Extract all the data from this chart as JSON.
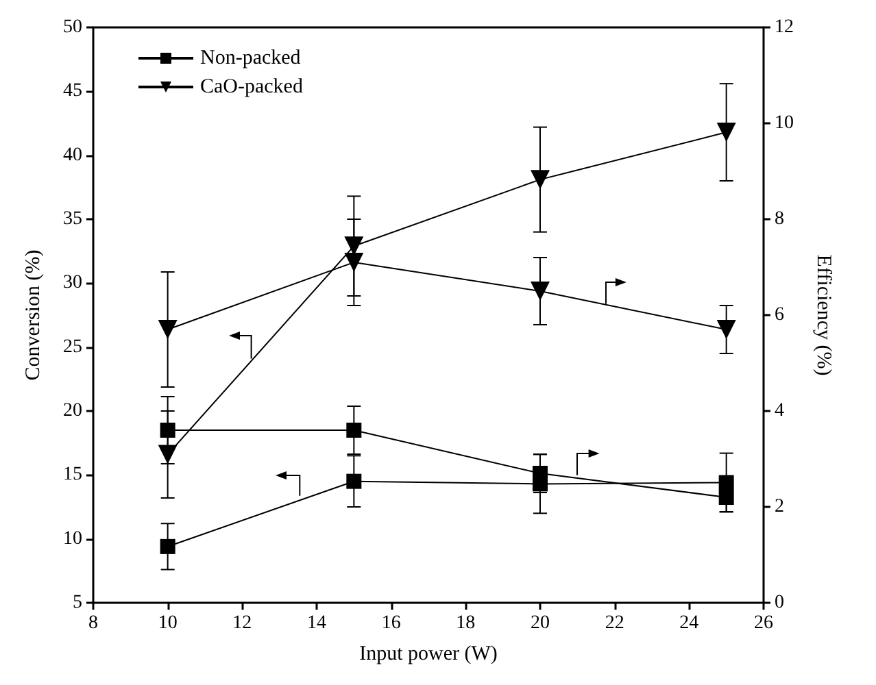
{
  "chart_data": {
    "type": "line",
    "xlabel": "Input power (W)",
    "ylabel": "Conversion (%)",
    "y2label": "Efficiency (%)",
    "x": [
      10,
      15,
      20,
      25
    ],
    "series": [
      {
        "name": "Non-packed",
        "color": "#000000",
        "marker": "square",
        "values": [
          9.4,
          14.5,
          14.3,
          14.4
        ],
        "errors": [
          1.8,
          2,
          2.3,
          2.3
        ]
      },
      {
        "name": "CaO-packed",
        "color": "#000000",
        "marker": "triangle",
        "values": [
          16.6,
          32.9,
          38.1,
          41.8
        ],
        "errors": [
          3.4,
          3.9,
          4.1,
          3.8
        ]
      },
      {
        "color": "#000000",
        "marker": "square",
        "axis": "y2",
        "values": [
          3.6,
          3.6,
          2.7,
          2.2
        ],
        "errors": [
          0.7,
          0.5,
          0.4,
          0.3
        ]
      },
      {
        "color": "#000000",
        "marker": "triangle",
        "axis": "y2",
        "values": [
          5.7,
          7.1,
          6.5,
          5.7
        ],
        "errors": [
          1.2,
          0.9,
          0.7,
          0.5
        ]
      }
    ],
    "xlim": [
      8,
      26
    ],
    "xticks": [
      8,
      10,
      12,
      14,
      16,
      18,
      20,
      22,
      24,
      26
    ],
    "ylim": [
      5,
      50
    ],
    "yticks": [
      5,
      10,
      15,
      20,
      25,
      30,
      35,
      40,
      45,
      50
    ],
    "y2lim": [
      0,
      12
    ],
    "y2ticks": [
      0,
      2,
      4,
      6,
      8,
      10,
      12
    ],
    "legend": "top left",
    "grid": false
  }
}
